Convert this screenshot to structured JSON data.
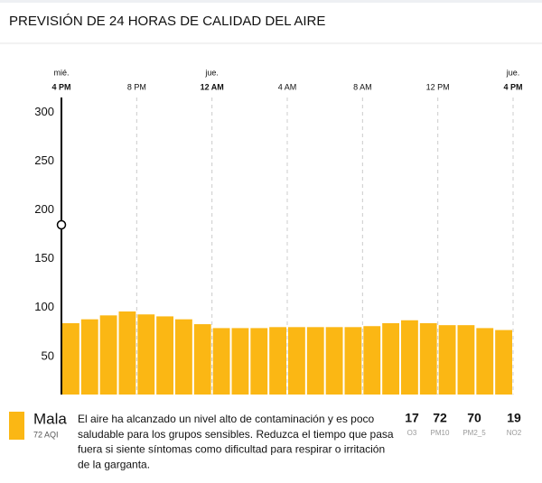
{
  "header": {
    "title": "PREVISIÓN DE 24 HORAS DE CALIDAD DEL AIRE"
  },
  "chart_data": {
    "type": "bar",
    "color": "#fbb714",
    "categories": [
      null,
      null,
      null,
      null,
      null,
      null,
      null,
      null,
      null,
      null,
      null,
      null,
      null,
      null,
      null,
      null,
      null,
      null,
      null,
      null,
      null,
      null,
      null,
      null
    ],
    "values": [
      73,
      77,
      81,
      85,
      82,
      80,
      77,
      72,
      68,
      68,
      68,
      69,
      69,
      69,
      69,
      69,
      70,
      73,
      76,
      73,
      71,
      71,
      68,
      66
    ],
    "ylim": [
      0,
      304
    ],
    "yticks": [
      50,
      100,
      150,
      200,
      250,
      300
    ],
    "xlim": [
      0,
      24
    ],
    "xticks": [
      {
        "value": 0,
        "label": "4 PM"
      },
      {
        "value": 4,
        "label": "8 PM"
      },
      {
        "value": 8,
        "label": "12 AM"
      },
      {
        "value": 12,
        "label": "4 AM"
      },
      {
        "value": 16,
        "label": "8 AM"
      },
      {
        "value": 20,
        "label": "12 PM"
      },
      {
        "value": 24,
        "label": "4 PM"
      }
    ],
    "xtick_days": [
      "mié.",
      null,
      "jue.",
      null,
      null,
      null,
      "jue."
    ]
  },
  "summary": {
    "level": "Mala",
    "aqi_label": "72 AQI",
    "description_lines": [
      "El aire ha alcanzado un nivel alto de contaminación y es poco",
      "saludable para los grupos sensibles. Reduzca el tiempo que pasa",
      "fuera si siente síntomas como dificultad para respirar o irritación",
      "de la garganta."
    ]
  },
  "pollutants": [
    {
      "value": "17",
      "name": "O3"
    },
    {
      "value": "72",
      "name": "PM10"
    },
    {
      "value": "70",
      "name": "PM2_5"
    },
    {
      "value": "19",
      "name": "NO2"
    }
  ]
}
